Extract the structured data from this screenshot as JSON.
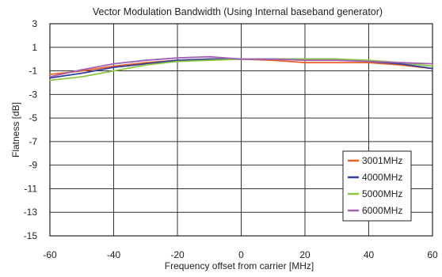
{
  "chart_data": {
    "type": "line",
    "title": "Vector Modulation Bandwidth (Using Internal baseband generator)",
    "xlabel": "Frequency offset from carrier [MHz]",
    "ylabel": "Flatness [dB]",
    "xlim": [
      -60,
      60
    ],
    "ylim": [
      -15,
      3
    ],
    "xticks": [
      -60,
      -40,
      -20,
      0,
      20,
      40,
      60
    ],
    "yticks": [
      3,
      1,
      -1,
      -3,
      -5,
      -7,
      -9,
      -11,
      -13,
      -15
    ],
    "grid": true,
    "legend_position": "bottom-right",
    "x": [
      -60,
      -50,
      -40,
      -30,
      -20,
      -10,
      0,
      10,
      20,
      30,
      40,
      50,
      60
    ],
    "series": [
      {
        "name": "3001MHz",
        "color": "#e8622a",
        "values": [
          -1.3,
          -1.0,
          -0.6,
          -0.3,
          -0.1,
          0.0,
          0.0,
          -0.1,
          -0.3,
          -0.3,
          -0.3,
          -0.5,
          -0.8
        ]
      },
      {
        "name": "4000MHz",
        "color": "#2f3f9e",
        "values": [
          -1.6,
          -1.2,
          -0.7,
          -0.4,
          -0.1,
          0.0,
          0.0,
          0.0,
          0.0,
          0.0,
          -0.2,
          -0.4,
          -0.8
        ]
      },
      {
        "name": "5000MHz",
        "color": "#8dc63f",
        "values": [
          -1.8,
          -1.5,
          -1.0,
          -0.5,
          -0.2,
          -0.1,
          0.0,
          0.0,
          0.0,
          0.0,
          -0.1,
          -0.3,
          -0.6
        ]
      },
      {
        "name": "6000MHz",
        "color": "#a45fb6",
        "values": [
          -1.5,
          -0.9,
          -0.4,
          -0.1,
          0.1,
          0.2,
          0.0,
          0.0,
          -0.1,
          -0.1,
          -0.2,
          -0.3,
          -0.4
        ]
      }
    ]
  }
}
